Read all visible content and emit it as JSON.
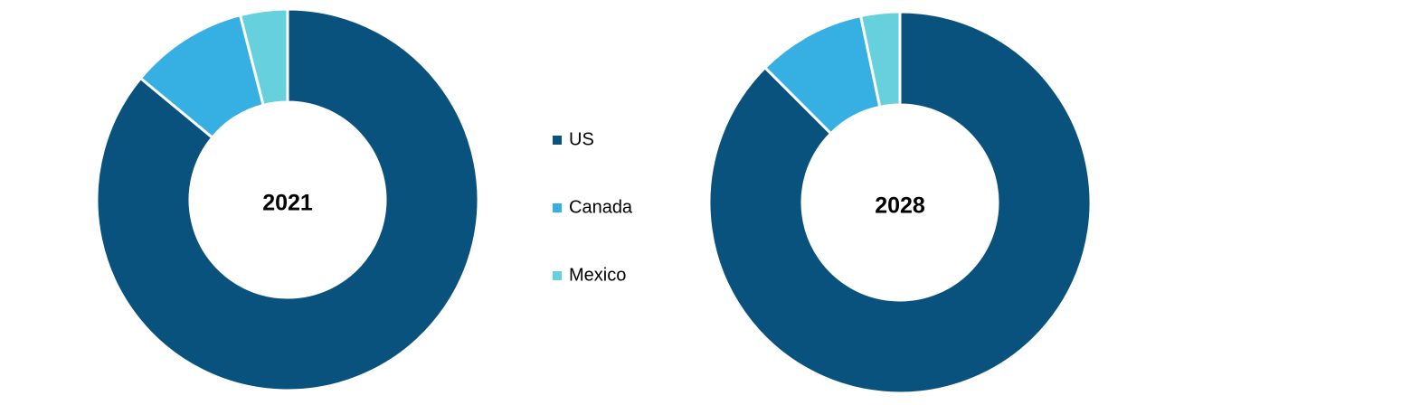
{
  "chart_data": {
    "type": "pie",
    "categories": [
      "US",
      "Canada",
      "Mexico"
    ],
    "colors": [
      "#0a527e",
      "#36b0e2",
      "#66d1dc"
    ],
    "series": [
      {
        "name": "2021",
        "values": [
          86,
          10,
          4
        ]
      },
      {
        "name": "2028",
        "values": [
          87.5,
          9.2,
          3.3
        ]
      }
    ]
  }
}
